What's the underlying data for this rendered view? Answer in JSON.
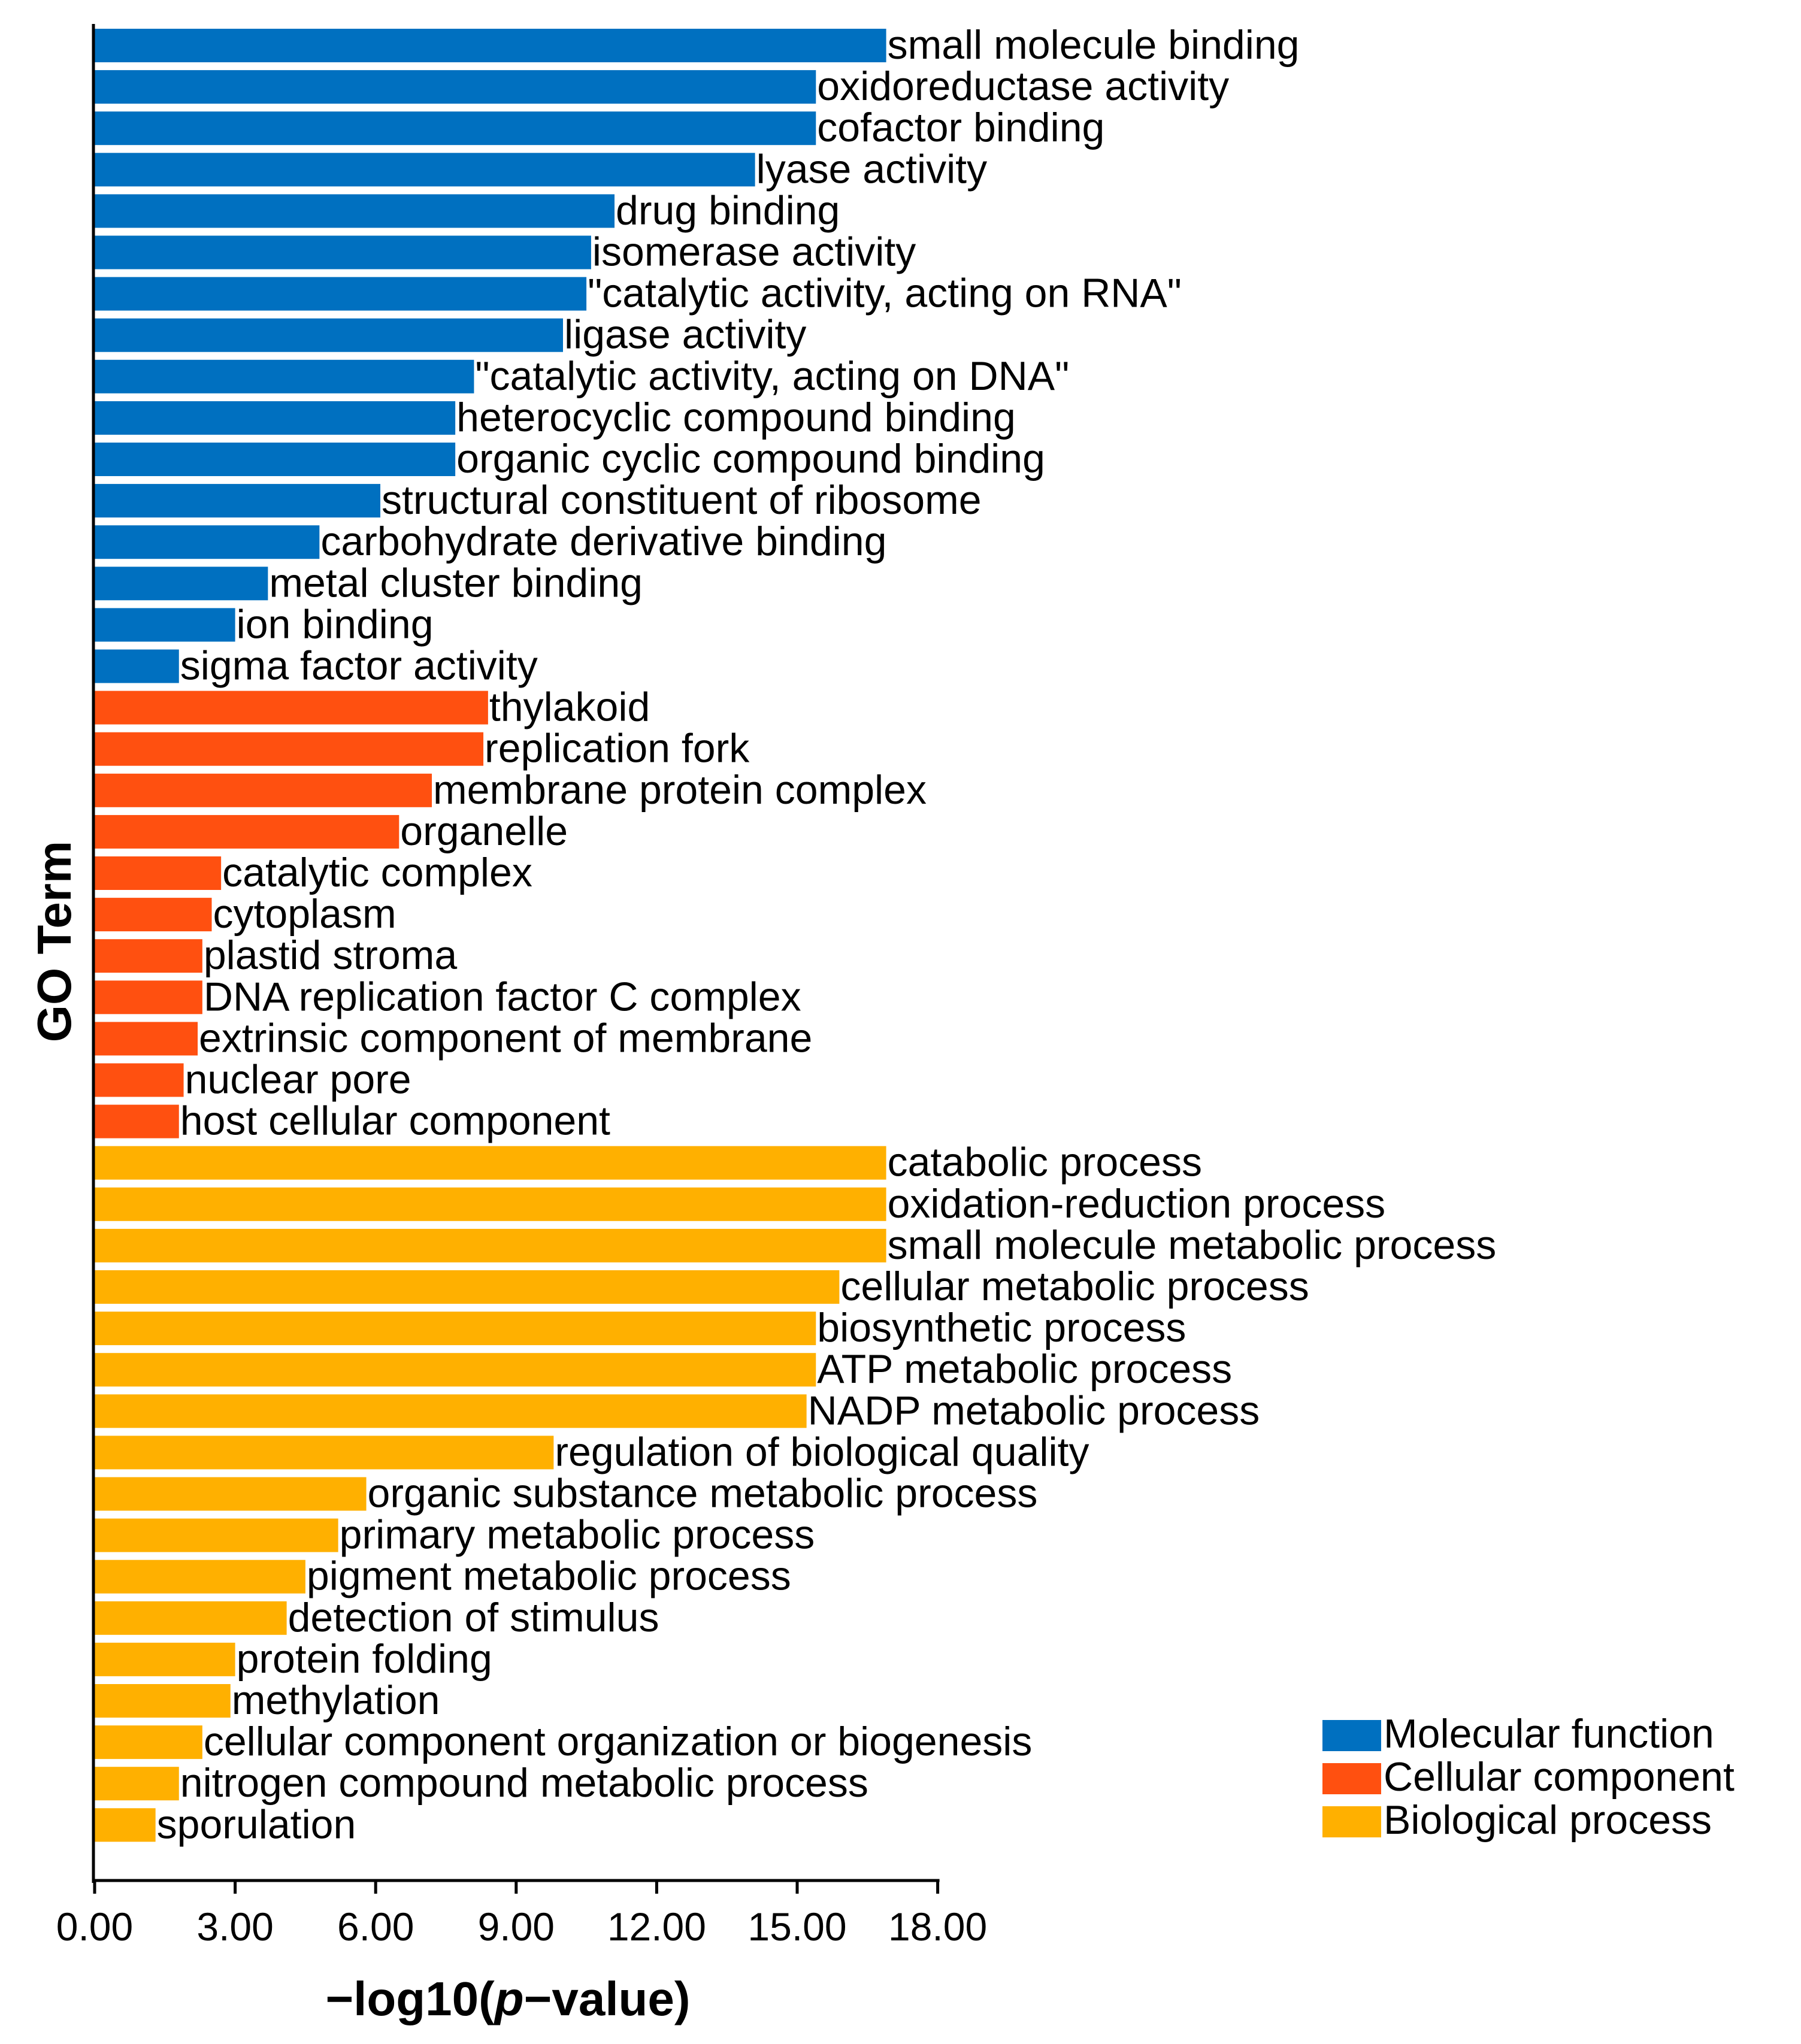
{
  "chart_data": {
    "type": "bar",
    "orientation": "horizontal",
    "title": "",
    "xlabel_parts": [
      "−log10(",
      "p",
      "−value)"
    ],
    "ylabel": "GO Term",
    "xlim": [
      0,
      18
    ],
    "xticks": [
      "0.00",
      "3.00",
      "6.00",
      "9.00",
      "12.00",
      "15.00",
      "18.00"
    ],
    "grid": false,
    "legend_position": "bottom-right",
    "series": [
      {
        "name": "Molecular function",
        "color": "#0070C0",
        "categories": [
          "small molecule binding",
          "oxidoreductase activity",
          "cofactor binding",
          "lyase activity",
          "drug binding",
          "isomerase activity",
          "\"catalytic activity, acting on RNA\"",
          "ligase activity",
          "\"catalytic activity, acting on DNA\"",
          "heterocyclic compound binding",
          "organic cyclic compound binding",
          "structural constituent of ribosome",
          "carbohydrate derivative binding",
          "metal cluster binding",
          "ion binding",
          "sigma factor activity"
        ],
        "values": [
          16.9,
          15.4,
          15.4,
          14.1,
          11.1,
          10.6,
          10.5,
          10.0,
          8.1,
          7.7,
          7.7,
          6.1,
          4.8,
          3.7,
          3.0,
          1.8
        ]
      },
      {
        "name": "Cellular component",
        "color": "#FF5010",
        "categories": [
          "thylakoid",
          "replication fork",
          "membrane protein complex",
          "organelle",
          "catalytic complex",
          "cytoplasm",
          "plastid stroma",
          "DNA replication factor C complex",
          "extrinsic component of membrane",
          "nuclear pore",
          "host cellular component"
        ],
        "values": [
          8.4,
          8.3,
          7.2,
          6.5,
          2.7,
          2.5,
          2.3,
          2.3,
          2.2,
          1.9,
          1.8
        ]
      },
      {
        "name": "Biological process",
        "color": "#FFB000",
        "categories": [
          "catabolic process",
          "oxidation-reduction process",
          "small molecule metabolic process",
          "cellular metabolic process",
          "biosynthetic process",
          "ATP metabolic process",
          "NADP metabolic process",
          "regulation of biological quality",
          "organic substance metabolic process",
          "primary metabolic process",
          "pigment metabolic process",
          "detection of stimulus",
          "protein folding",
          "methylation",
          "cellular component organization or biogenesis",
          "nitrogen compound metabolic process",
          "sporulation"
        ],
        "values": [
          16.9,
          16.9,
          16.9,
          15.9,
          15.4,
          15.4,
          15.2,
          9.8,
          5.8,
          5.2,
          4.5,
          4.1,
          3.0,
          2.9,
          2.3,
          1.8,
          1.3
        ]
      }
    ]
  }
}
